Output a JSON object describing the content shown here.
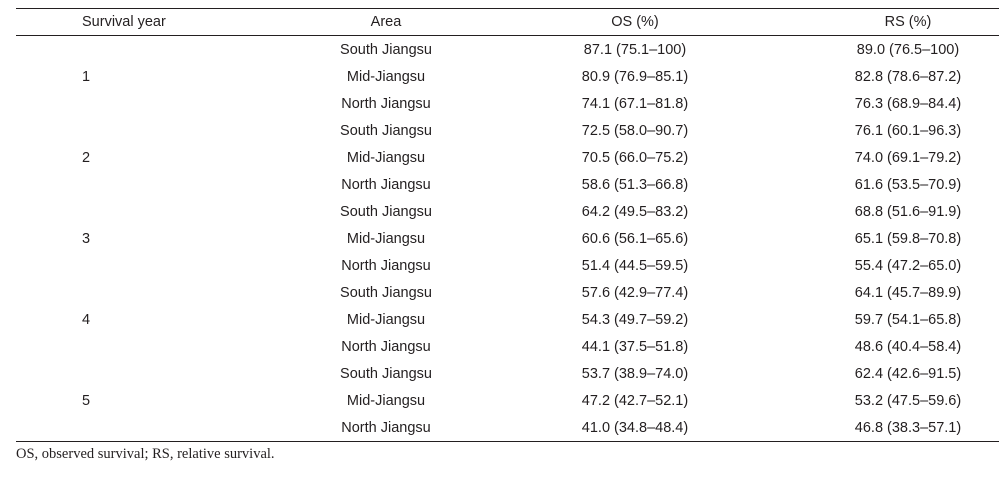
{
  "table": {
    "headers": {
      "year": "Survival year",
      "area": "Area",
      "os": "OS (%)",
      "rs": "RS (%)"
    },
    "rows": [
      {
        "year": "",
        "area": "South Jiangsu",
        "os": "87.1 (75.1–100)",
        "rs": "89.0 (76.5–100)"
      },
      {
        "year": "1",
        "area": "Mid-Jiangsu",
        "os": "80.9 (76.9–85.1)",
        "rs": "82.8 (78.6–87.2)"
      },
      {
        "year": "",
        "area": "North Jiangsu",
        "os": "74.1 (67.1–81.8)",
        "rs": "76.3 (68.9–84.4)"
      },
      {
        "year": "",
        "area": "South Jiangsu",
        "os": "72.5 (58.0–90.7)",
        "rs": "76.1 (60.1–96.3)"
      },
      {
        "year": "2",
        "area": "Mid-Jiangsu",
        "os": "70.5 (66.0–75.2)",
        "rs": "74.0 (69.1–79.2)"
      },
      {
        "year": "",
        "area": "North Jiangsu",
        "os": "58.6 (51.3–66.8)",
        "rs": "61.6 (53.5–70.9)"
      },
      {
        "year": "",
        "area": "South Jiangsu",
        "os": "64.2 (49.5–83.2)",
        "rs": "68.8 (51.6–91.9)"
      },
      {
        "year": "3",
        "area": "Mid-Jiangsu",
        "os": "60.6 (56.1–65.6)",
        "rs": "65.1 (59.8–70.8)"
      },
      {
        "year": "",
        "area": "North Jiangsu",
        "os": "51.4 (44.5–59.5)",
        "rs": "55.4 (47.2–65.0)"
      },
      {
        "year": "",
        "area": "South Jiangsu",
        "os": "57.6 (42.9–77.4)",
        "rs": "64.1 (45.7–89.9)"
      },
      {
        "year": "4",
        "area": "Mid-Jiangsu",
        "os": "54.3 (49.7–59.2)",
        "rs": "59.7 (54.1–65.8)"
      },
      {
        "year": "",
        "area": "North Jiangsu",
        "os": "44.1 (37.5–51.8)",
        "rs": "48.6 (40.4–58.4)"
      },
      {
        "year": "",
        "area": "South Jiangsu",
        "os": "53.7 (38.9–74.0)",
        "rs": "62.4 (42.6–91.5)"
      },
      {
        "year": "5",
        "area": "Mid-Jiangsu",
        "os": "47.2 (42.7–52.1)",
        "rs": "53.2 (47.5–59.6)"
      },
      {
        "year": "",
        "area": "North Jiangsu",
        "os": "41.0 (34.8–48.4)",
        "rs": "46.8 (38.3–57.1)"
      }
    ]
  },
  "footnote": "OS, observed survival; RS, relative survival."
}
